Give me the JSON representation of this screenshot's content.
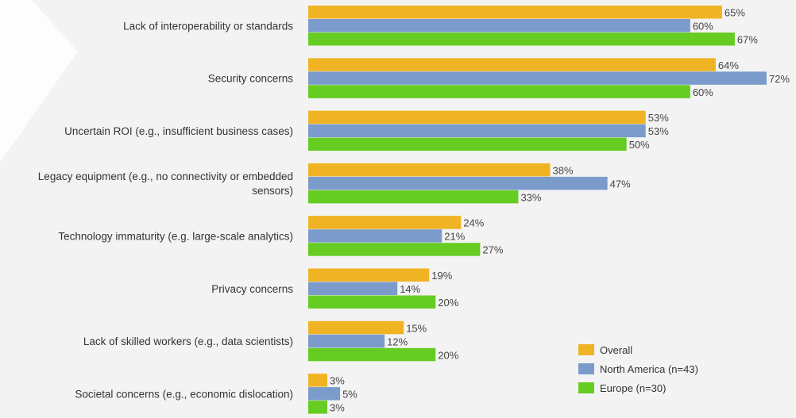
{
  "chart_data": {
    "type": "bar",
    "orientation": "horizontal",
    "title": "",
    "xlabel": "",
    "ylabel": "",
    "value_suffix": "%",
    "xlim": [
      0,
      72
    ],
    "grid": false,
    "legend_position": "bottom-right",
    "categories": [
      [
        "Lack of interoperability or standards"
      ],
      [
        "Security concerns"
      ],
      [
        "Uncertain ROI (e.g., insufficient business cases)"
      ],
      [
        "Legacy equipment (e.g., no connectivity or embedded",
        "sensors)"
      ],
      [
        "Technology immaturity (e.g. large-scale analytics)"
      ],
      [
        "Privacy concerns"
      ],
      [
        "Lack of skilled workers (e.g., data scientists)"
      ],
      [
        "Societal concerns (e.g., economic dislocation)"
      ]
    ],
    "series": [
      {
        "name": "Overall",
        "color": "#f0b323",
        "values": [
          65,
          64,
          53,
          38,
          24,
          19,
          15,
          3
        ]
      },
      {
        "name": "North America (n=43)",
        "color": "#7b9bcb",
        "values": [
          60,
          72,
          53,
          47,
          21,
          14,
          12,
          5
        ]
      },
      {
        "name": "Europe (n=30)",
        "color": "#66cc22",
        "values": [
          67,
          60,
          50,
          33,
          27,
          20,
          20,
          3
        ]
      }
    ]
  }
}
